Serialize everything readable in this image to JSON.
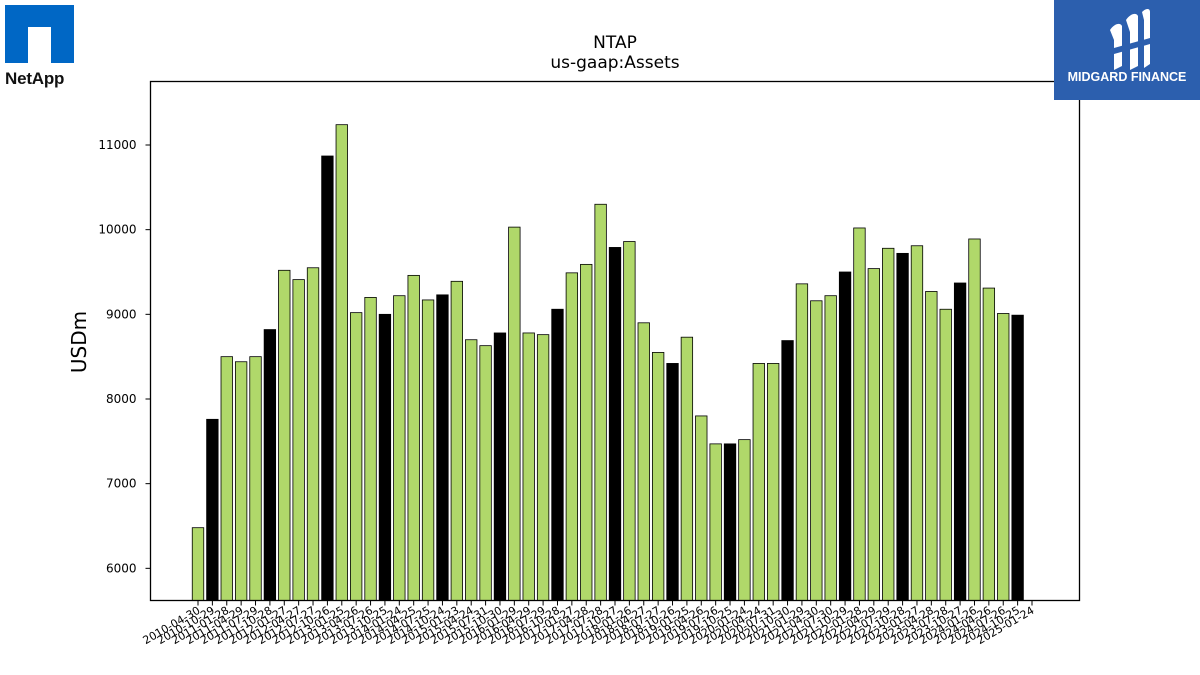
{
  "header": {
    "title": "NTAP",
    "subtitle": "us-gaap:Assets"
  },
  "logos": {
    "left": {
      "name": "NetApp",
      "icon": "netapp-logo"
    },
    "right": {
      "name": "MIDGARD FINANCE",
      "icon": "midgard-finance-logo",
      "background": "#2c5fae"
    }
  },
  "colors": {
    "bar_primary": "#b0d86a",
    "bar_highlight": "#000000",
    "bar_edge": "#000000"
  },
  "chart_data": {
    "type": "bar",
    "title": "NTAP",
    "subtitle": "us-gaap:Assets",
    "ylabel": "USDm",
    "xlabel": "",
    "ylim": [
      5620,
      11750
    ],
    "yticks": [
      6000,
      7000,
      8000,
      9000,
      10000,
      11000
    ],
    "grid": false,
    "legend": "none",
    "categories": [
      "2010-04-30",
      "2010-10-29",
      "2011-01-28",
      "2011-04-29",
      "2011-07-29",
      "2011-10-28",
      "2012-01-27",
      "2012-04-27",
      "2012-07-27",
      "2012-10-26",
      "2013-01-25",
      "2013-04-26",
      "2013-07-26",
      "2013-10-25",
      "2014-01-24",
      "2014-04-25",
      "2014-07-25",
      "2014-10-24",
      "2015-01-23",
      "2015-04-24",
      "2015-07-31",
      "2015-10-30",
      "2016-01-29",
      "2016-04-29",
      "2016-07-29",
      "2016-10-28",
      "2017-01-27",
      "2017-04-28",
      "2017-07-28",
      "2017-10-27",
      "2018-01-26",
      "2018-04-27",
      "2018-07-27",
      "2018-10-26",
      "2019-01-25",
      "2019-04-26",
      "2019-07-26",
      "2019-10-25",
      "2020-01-24",
      "2020-04-24",
      "2020-07-31",
      "2020-10-30",
      "2021-01-29",
      "2021-04-30",
      "2021-07-30",
      "2021-10-29",
      "2022-01-28",
      "2022-04-29",
      "2022-07-29",
      "2022-10-28",
      "2023-01-27",
      "2023-04-28",
      "2023-07-28",
      "2023-10-27",
      "2024-01-26",
      "2024-04-26",
      "2024-07-26",
      "2024-10-25",
      "2025-01-24"
    ],
    "values": [
      6480,
      7760,
      8500,
      8440,
      8500,
      8820,
      9520,
      9410,
      9550,
      10870,
      11240,
      9020,
      9200,
      9000,
      9220,
      9460,
      9170,
      9230,
      9390,
      8700,
      8630,
      8780,
      10030,
      8780,
      8760,
      9060,
      9490,
      9590,
      10300,
      9790,
      9860,
      8900,
      8550,
      8420,
      8730,
      7800,
      7470,
      7470,
      7520,
      8420,
      8420,
      8690,
      9360,
      9160,
      9220,
      9500,
      10020,
      9540,
      9780,
      9720,
      9810,
      9270,
      9060,
      9370,
      9890,
      9310,
      9010,
      8990,
      null
    ],
    "highlight": [
      false,
      true,
      false,
      false,
      false,
      true,
      false,
      false,
      false,
      true,
      false,
      false,
      false,
      true,
      false,
      false,
      false,
      true,
      false,
      false,
      false,
      true,
      false,
      false,
      false,
      true,
      false,
      false,
      false,
      true,
      false,
      false,
      false,
      true,
      false,
      false,
      false,
      true,
      false,
      false,
      false,
      true,
      false,
      false,
      false,
      true,
      false,
      false,
      false,
      true,
      false,
      false,
      false,
      true,
      false,
      false,
      false,
      true,
      false
    ]
  }
}
